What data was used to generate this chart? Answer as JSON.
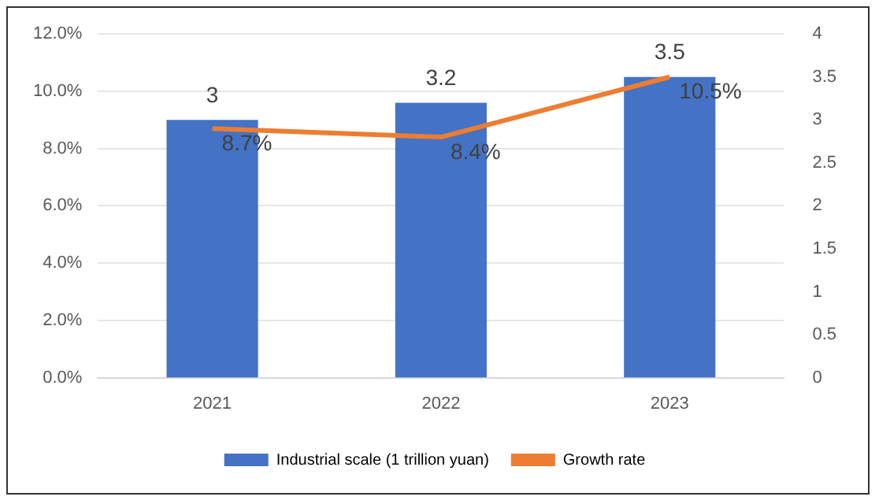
{
  "chart_data": {
    "type": "bar",
    "categories": [
      "2021",
      "2022",
      "2023"
    ],
    "series": [
      {
        "name": "Industrial scale (1 trillion yuan)",
        "axis": "y2",
        "color": "#4472c4",
        "values": [
          3,
          3.2,
          3.5
        ],
        "value_labels": [
          "3",
          "3.2",
          "3.5"
        ]
      },
      {
        "name": "Growth rate",
        "type": "line",
        "axis": "y",
        "color": "#ed7d31",
        "values": [
          8.7,
          8.4,
          10.5
        ],
        "value_labels": [
          "8.7%",
          "8.4%",
          "10.5%"
        ]
      }
    ],
    "ylim": [
      0,
      12
    ],
    "yticks": [
      {
        "value": 0,
        "label": "0.0%"
      },
      {
        "value": 2,
        "label": "2.0%"
      },
      {
        "value": 4,
        "label": "4.0%"
      },
      {
        "value": 6,
        "label": "6.0%"
      },
      {
        "value": 8,
        "label": "8.0%"
      },
      {
        "value": 10,
        "label": "10.0%"
      },
      {
        "value": 12,
        "label": "12.0%"
      }
    ],
    "y2lim": [
      0,
      4
    ],
    "y2ticks": [
      0,
      0.5,
      1,
      1.5,
      2,
      2.5,
      3,
      3.5,
      4
    ],
    "grid": "y",
    "legend": "bottom",
    "marker": "none",
    "line_style": "solid"
  }
}
